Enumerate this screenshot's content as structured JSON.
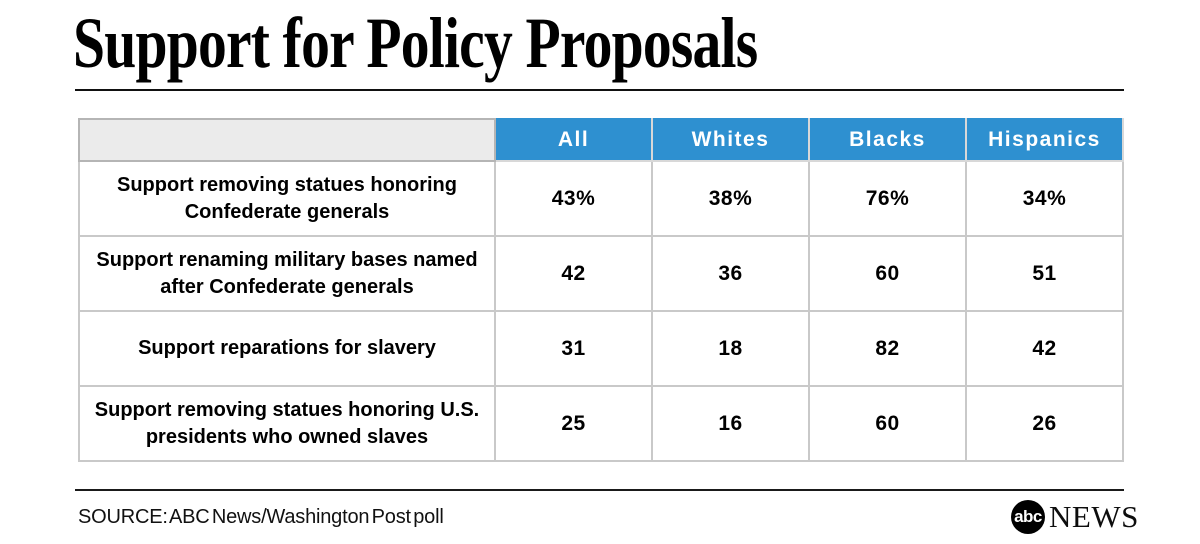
{
  "title": "Support for Policy Proposals",
  "table": {
    "columns": [
      "All",
      "Whites",
      "Blacks",
      "Hispanics"
    ],
    "rows": [
      {
        "label_lines": [
          "Support removing statues honoring",
          "Confederate generals"
        ],
        "values": [
          "43%",
          "38%",
          "76%",
          "34%"
        ]
      },
      {
        "label_lines": [
          "Support renaming military bases named",
          "after Confederate generals"
        ],
        "values": [
          "42",
          "36",
          "60",
          "51"
        ]
      },
      {
        "label_lines": [
          "Support reparations for slavery"
        ],
        "values": [
          "31",
          "18",
          "82",
          "42"
        ]
      },
      {
        "label_lines": [
          "Support removing statues honoring U.S.",
          "presidents who owned slaves"
        ],
        "values": [
          "25",
          "16",
          "60",
          "26"
        ]
      }
    ]
  },
  "footer": {
    "source": "SOURCE: ABC News/Washington Post poll",
    "logo_abc": "abc",
    "logo_news": "NEWS"
  },
  "colors": {
    "header_blue": "#2e90d0",
    "corner_gray": "#ebebeb",
    "grid_gray": "#c9c9c9",
    "text_black": "#000000",
    "background": "#ffffff"
  },
  "chart_data": {
    "type": "table",
    "title": "Support for Policy Proposals",
    "columns": [
      "All",
      "Whites",
      "Blacks",
      "Hispanics"
    ],
    "row_labels": [
      "Support removing statues honoring Confederate generals",
      "Support renaming military bases named after Confederate generals",
      "Support reparations for slavery",
      "Support removing statues honoring U.S. presidents who owned slaves"
    ],
    "values_percent": [
      [
        43,
        38,
        76,
        34
      ],
      [
        42,
        36,
        60,
        51
      ],
      [
        31,
        18,
        82,
        42
      ],
      [
        25,
        16,
        60,
        26
      ]
    ],
    "source": "ABC News/Washington Post poll"
  }
}
